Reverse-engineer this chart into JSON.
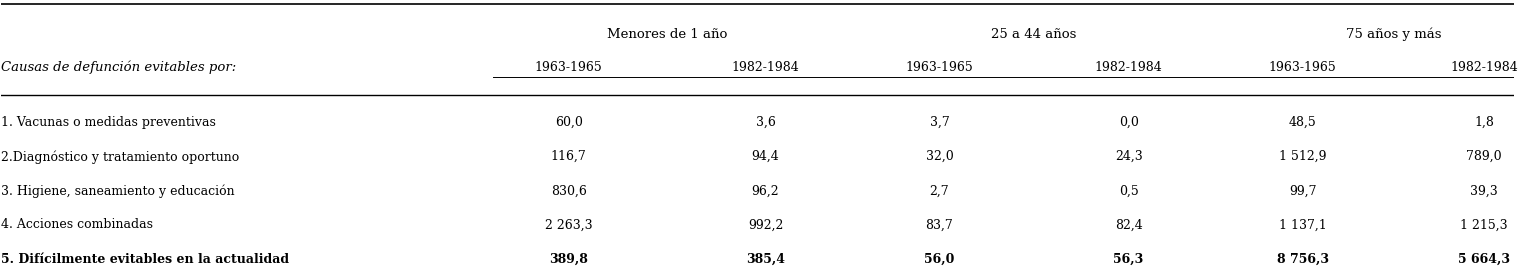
{
  "col_header_group": [
    "Menores de 1 año",
    "25 a 44 años",
    "75 años y más"
  ],
  "col_header_sub": [
    "1963-1965",
    "1982-1984",
    "1963-1965",
    "1982-1984",
    "1963-1965",
    "1982-1984"
  ],
  "row_header": "Causas de defunción evitables por:",
  "rows": [
    {
      "label": "1. Vacunas o medidas preventivas",
      "values": [
        "60,0",
        "3,6",
        "3,7",
        "0,0",
        "48,5",
        "1,8"
      ]
    },
    {
      "label": "2.Diagnóstico y tratamiento oportuno",
      "values": [
        "116,7",
        "94,4",
        "32,0",
        "24,3",
        "1 512,9",
        "789,0"
      ]
    },
    {
      "label": "3. Higiene, saneamiento y educación",
      "values": [
        "830,6",
        "96,2",
        "2,7",
        "0,5",
        "99,7",
        "39,3"
      ]
    },
    {
      "label": "4. Acciones combinadas",
      "values": [
        "2 263,3",
        "992,2",
        "83,7",
        "82,4",
        "1 137,1",
        "1 215,3"
      ]
    },
    {
      "label": "5. Difícilmente evitables en la actualidad",
      "values": [
        "389,8",
        "385,4",
        "56,0",
        "56,3",
        "8 756,3",
        "5 664,3"
      ]
    }
  ],
  "bold_last_row": true,
  "background_color": "#ffffff",
  "font_family": "serif",
  "fontsize_data": 9,
  "fontsize_header": 9.5
}
